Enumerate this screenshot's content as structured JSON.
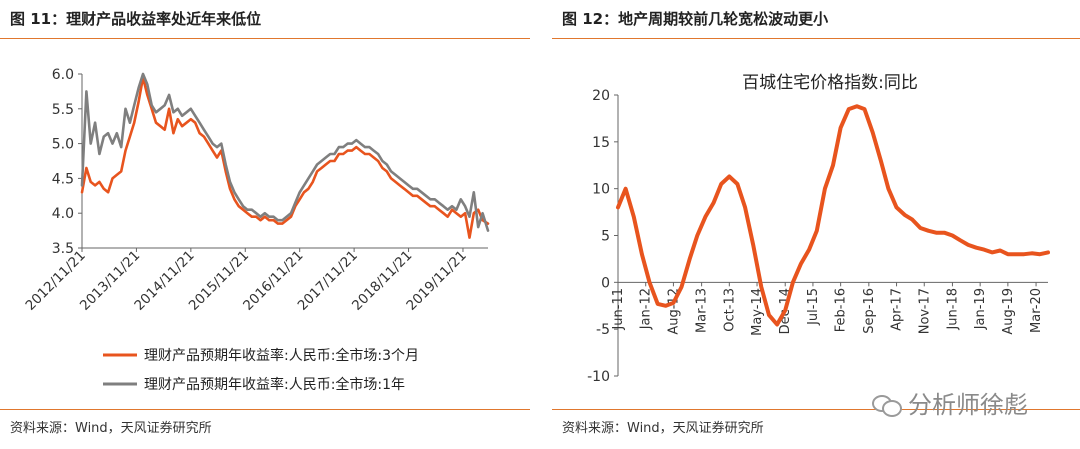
{
  "left_panel": {
    "title": "图 11：理财产品收益率处近年来低位",
    "source": "资料来源：Wind，天风证券研究所"
  },
  "right_panel": {
    "title": "图 12：地产周期较前几轮宽松波动更小",
    "source": "资料来源：Wind，天风证券研究所"
  },
  "watermark": {
    "text": "分析师徐彪",
    "icon": "wechat-icon"
  },
  "colors": {
    "accent": "#e0772e",
    "orange_series": "#e8541e",
    "gray_series": "#7f7f7f"
  },
  "chart_data": [
    {
      "type": "line",
      "title": "",
      "xlabel": "",
      "ylabel": "",
      "ylim": [
        3.5,
        6.0
      ],
      "yticks": [
        "3.5",
        "4.0",
        "4.5",
        "5.0",
        "5.5",
        "6.0"
      ],
      "xticks": [
        "2012/11/21",
        "2013/11/21",
        "2014/11/21",
        "2015/11/21",
        "2016/11/21",
        "2017/11/21",
        "2018/11/21",
        "2019/11/21"
      ],
      "xticks_dec": [
        2012.89,
        2013.89,
        2014.89,
        2015.89,
        2016.89,
        2017.89,
        2018.89,
        2019.89
      ],
      "x_range": [
        2012.89,
        2020.35
      ],
      "grid": false,
      "legend_position": "bottom",
      "series": [
        {
          "name": "理财产品预期年收益率:人民币:全市场:3个月",
          "color": "#e8541e",
          "x": [
            2012.89,
            2012.97,
            2013.05,
            2013.13,
            2013.21,
            2013.29,
            2013.37,
            2013.45,
            2013.53,
            2013.61,
            2013.69,
            2013.77,
            2013.85,
            2013.93,
            2014.01,
            2014.09,
            2014.17,
            2014.25,
            2014.33,
            2014.41,
            2014.49,
            2014.57,
            2014.65,
            2014.73,
            2014.81,
            2014.89,
            2014.97,
            2015.05,
            2015.13,
            2015.21,
            2015.29,
            2015.37,
            2015.45,
            2015.53,
            2015.61,
            2015.69,
            2015.77,
            2015.85,
            2015.93,
            2016.01,
            2016.09,
            2016.17,
            2016.25,
            2016.33,
            2016.41,
            2016.49,
            2016.57,
            2016.65,
            2016.73,
            2016.81,
            2016.89,
            2016.97,
            2017.05,
            2017.13,
            2017.21,
            2017.29,
            2017.37,
            2017.45,
            2017.53,
            2017.61,
            2017.69,
            2017.77,
            2017.85,
            2017.93,
            2018.01,
            2018.09,
            2018.17,
            2018.25,
            2018.33,
            2018.41,
            2018.49,
            2018.57,
            2018.65,
            2018.73,
            2018.81,
            2018.89,
            2018.97,
            2019.05,
            2019.13,
            2019.21,
            2019.29,
            2019.37,
            2019.45,
            2019.53,
            2019.61,
            2019.69,
            2019.77,
            2019.85,
            2019.93,
            2020.01,
            2020.09,
            2020.17,
            2020.25,
            2020.35
          ],
          "values": [
            4.3,
            4.65,
            4.45,
            4.4,
            4.45,
            4.35,
            4.3,
            4.5,
            4.55,
            4.6,
            4.9,
            5.1,
            5.3,
            5.6,
            5.95,
            5.7,
            5.5,
            5.3,
            5.25,
            5.2,
            5.5,
            5.15,
            5.35,
            5.25,
            5.3,
            5.35,
            5.3,
            5.15,
            5.1,
            5.0,
            4.9,
            4.8,
            4.9,
            4.6,
            4.35,
            4.2,
            4.1,
            4.05,
            4.0,
            3.95,
            3.95,
            3.9,
            3.95,
            3.9,
            3.9,
            3.85,
            3.85,
            3.9,
            3.95,
            4.1,
            4.2,
            4.3,
            4.35,
            4.45,
            4.6,
            4.65,
            4.7,
            4.75,
            4.75,
            4.85,
            4.85,
            4.9,
            4.9,
            4.95,
            4.9,
            4.85,
            4.85,
            4.8,
            4.75,
            4.65,
            4.6,
            4.5,
            4.45,
            4.4,
            4.35,
            4.3,
            4.25,
            4.25,
            4.2,
            4.15,
            4.1,
            4.1,
            4.05,
            4.0,
            3.95,
            4.05,
            4.0,
            3.95,
            4.0,
            3.65,
            4.0,
            4.05,
            3.9,
            3.85
          ]
        },
        {
          "name": "理财产品预期年收益率:人民币:全市场:1年",
          "color": "#7f7f7f",
          "x": [
            2012.89,
            2012.97,
            2013.05,
            2013.13,
            2013.21,
            2013.29,
            2013.37,
            2013.45,
            2013.53,
            2013.61,
            2013.69,
            2013.77,
            2013.85,
            2013.93,
            2014.01,
            2014.09,
            2014.17,
            2014.25,
            2014.33,
            2014.41,
            2014.49,
            2014.57,
            2014.65,
            2014.73,
            2014.81,
            2014.89,
            2014.97,
            2015.05,
            2015.13,
            2015.21,
            2015.29,
            2015.37,
            2015.45,
            2015.53,
            2015.61,
            2015.69,
            2015.77,
            2015.85,
            2015.93,
            2016.01,
            2016.09,
            2016.17,
            2016.25,
            2016.33,
            2016.41,
            2016.49,
            2016.57,
            2016.65,
            2016.73,
            2016.81,
            2016.89,
            2016.97,
            2017.05,
            2017.13,
            2017.21,
            2017.29,
            2017.37,
            2017.45,
            2017.53,
            2017.61,
            2017.69,
            2017.77,
            2017.85,
            2017.93,
            2018.01,
            2018.09,
            2018.17,
            2018.25,
            2018.33,
            2018.41,
            2018.49,
            2018.57,
            2018.65,
            2018.73,
            2018.81,
            2018.89,
            2018.97,
            2019.05,
            2019.13,
            2019.21,
            2019.29,
            2019.37,
            2019.45,
            2019.53,
            2019.61,
            2019.69,
            2019.77,
            2019.85,
            2019.93,
            2020.01,
            2020.09,
            2020.17,
            2020.25,
            2020.35
          ],
          "values": [
            4.4,
            5.75,
            5.0,
            5.3,
            4.85,
            5.1,
            5.15,
            5.0,
            5.15,
            4.95,
            5.5,
            5.3,
            5.55,
            5.8,
            6.0,
            5.85,
            5.55,
            5.45,
            5.5,
            5.55,
            5.7,
            5.45,
            5.5,
            5.4,
            5.45,
            5.5,
            5.4,
            5.3,
            5.2,
            5.1,
            5.0,
            4.95,
            5.0,
            4.7,
            4.45,
            4.3,
            4.2,
            4.1,
            4.05,
            4.05,
            4.0,
            3.95,
            4.0,
            3.95,
            3.95,
            3.9,
            3.9,
            3.95,
            4.0,
            4.15,
            4.3,
            4.4,
            4.5,
            4.6,
            4.7,
            4.75,
            4.8,
            4.85,
            4.85,
            4.95,
            4.95,
            5.0,
            5.0,
            5.05,
            5.0,
            4.95,
            4.95,
            4.9,
            4.85,
            4.75,
            4.7,
            4.6,
            4.55,
            4.5,
            4.45,
            4.4,
            4.35,
            4.35,
            4.3,
            4.25,
            4.2,
            4.2,
            4.15,
            4.1,
            4.05,
            4.1,
            4.05,
            4.2,
            4.1,
            3.95,
            4.3,
            3.8,
            4.0,
            3.75
          ]
        }
      ]
    },
    {
      "type": "line",
      "title": "百城住宅价格指数:同比",
      "xlabel": "",
      "ylabel": "",
      "ylim": [
        -10,
        20
      ],
      "yticks": [
        "-10",
        "-5",
        "0",
        "5",
        "10",
        "15",
        "20"
      ],
      "xticks": [
        "Jun-11",
        "Jan-12",
        "Aug-12",
        "Mar-13",
        "Oct-13",
        "May-14",
        "Dec-14",
        "Jul-15",
        "Feb-16",
        "Sep-16",
        "Apr-17",
        "Nov-17",
        "Jun-18",
        "Jan-19",
        "Aug-19",
        "Mar-20"
      ],
      "xticks_dec": [
        2011.42,
        2012.0,
        2012.58,
        2013.17,
        2013.75,
        2014.33,
        2014.92,
        2015.5,
        2016.08,
        2016.67,
        2017.25,
        2017.83,
        2018.42,
        2019.0,
        2019.58,
        2020.17
      ],
      "x_range": [
        2011.42,
        2020.42
      ],
      "grid": false,
      "series": [
        {
          "name": "",
          "color": "#e8541e",
          "x": [
            2011.42,
            2011.58,
            2011.75,
            2011.92,
            2012.08,
            2012.25,
            2012.42,
            2012.58,
            2012.75,
            2012.92,
            2013.08,
            2013.25,
            2013.42,
            2013.58,
            2013.75,
            2013.92,
            2014.08,
            2014.25,
            2014.42,
            2014.58,
            2014.75,
            2014.92,
            2015.08,
            2015.25,
            2015.42,
            2015.58,
            2015.75,
            2015.92,
            2016.08,
            2016.25,
            2016.42,
            2016.58,
            2016.75,
            2016.92,
            2017.08,
            2017.25,
            2017.42,
            2017.58,
            2017.75,
            2017.92,
            2018.08,
            2018.25,
            2018.42,
            2018.58,
            2018.75,
            2018.92,
            2019.08,
            2019.25,
            2019.42,
            2019.58,
            2019.75,
            2019.92,
            2020.08,
            2020.25,
            2020.42
          ],
          "values": [
            8.0,
            10.0,
            7.0,
            3.0,
            0.0,
            -2.3,
            -2.5,
            -2.2,
            -0.5,
            2.5,
            5.0,
            7.0,
            8.5,
            10.5,
            11.3,
            10.5,
            8.0,
            4.0,
            -0.5,
            -3.5,
            -4.5,
            -3.0,
            0.0,
            2.0,
            3.5,
            5.5,
            10.0,
            12.5,
            16.5,
            18.5,
            18.8,
            18.5,
            16.0,
            13.0,
            10.0,
            8.0,
            7.2,
            6.7,
            5.8,
            5.5,
            5.3,
            5.3,
            5.0,
            4.5,
            4.0,
            3.7,
            3.5,
            3.2,
            3.4,
            3.0,
            3.0,
            3.0,
            3.1,
            3.0,
            3.2
          ]
        }
      ]
    }
  ]
}
